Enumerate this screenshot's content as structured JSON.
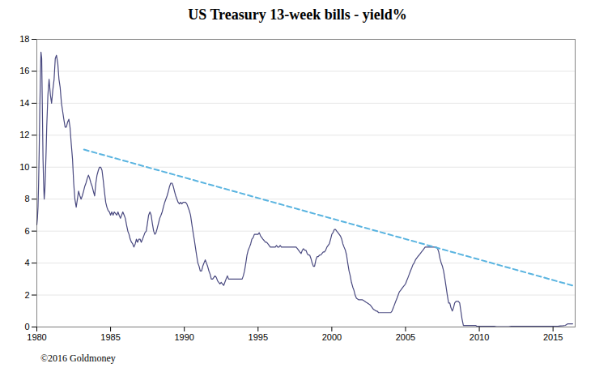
{
  "chart_data": {
    "type": "line",
    "title": "US Treasury 13-week bills - yield%",
    "annotations": [
      "©2016 Goldmoney"
    ],
    "xlim": [
      1980,
      2016.5
    ],
    "ylim": [
      0,
      18
    ],
    "xticks": [
      1980,
      1985,
      1990,
      1995,
      2000,
      2005,
      2010,
      2015
    ],
    "yticks": [
      0,
      2,
      4,
      6,
      8,
      10,
      12,
      14,
      16,
      18
    ],
    "grid": "y",
    "series": [
      {
        "color": "#4a4a80",
        "line_style": "solid",
        "x": [
          1980.0,
          1980.04,
          1980.08,
          1980.12,
          1980.16,
          1980.2,
          1980.24,
          1980.28,
          1980.33,
          1980.37,
          1980.42,
          1980.46,
          1980.5,
          1980.54,
          1980.58,
          1980.63,
          1980.67,
          1980.75,
          1980.83,
          1980.92,
          1981.0,
          1981.08,
          1981.17,
          1981.25,
          1981.33,
          1981.42,
          1981.5,
          1981.58,
          1981.67,
          1981.75,
          1981.83,
          1981.92,
          1982.0,
          1982.08,
          1982.17,
          1982.25,
          1982.33,
          1982.42,
          1982.5,
          1982.58,
          1982.67,
          1982.75,
          1982.83,
          1982.92,
          1983.0,
          1983.08,
          1983.17,
          1983.25,
          1983.33,
          1983.42,
          1983.5,
          1983.58,
          1983.67,
          1983.75,
          1983.83,
          1983.92,
          1984.0,
          1984.08,
          1984.17,
          1984.25,
          1984.33,
          1984.42,
          1984.5,
          1984.58,
          1984.67,
          1984.75,
          1984.83,
          1984.92,
          1985.0,
          1985.08,
          1985.17,
          1985.25,
          1985.33,
          1985.42,
          1985.5,
          1985.58,
          1985.67,
          1985.75,
          1985.83,
          1985.92,
          1986.0,
          1986.08,
          1986.17,
          1986.25,
          1986.33,
          1986.42,
          1986.5,
          1986.58,
          1986.67,
          1986.75,
          1986.83,
          1986.92,
          1987.0,
          1987.08,
          1987.17,
          1987.25,
          1987.33,
          1987.42,
          1987.5,
          1987.58,
          1987.67,
          1987.75,
          1987.83,
          1987.92,
          1988.0,
          1988.08,
          1988.17,
          1988.25,
          1988.33,
          1988.42,
          1988.5,
          1988.58,
          1988.67,
          1988.75,
          1988.83,
          1988.92,
          1989.0,
          1989.08,
          1989.17,
          1989.25,
          1989.33,
          1989.42,
          1989.5,
          1989.58,
          1989.67,
          1989.75,
          1989.83,
          1989.92,
          1990.0,
          1990.08,
          1990.17,
          1990.25,
          1990.33,
          1990.42,
          1990.5,
          1990.58,
          1990.67,
          1990.75,
          1990.83,
          1990.92,
          1991.0,
          1991.08,
          1991.17,
          1991.25,
          1991.33,
          1991.42,
          1991.5,
          1991.58,
          1991.67,
          1991.75,
          1991.83,
          1991.92,
          1992.0,
          1992.08,
          1992.17,
          1992.25,
          1992.33,
          1992.42,
          1992.5,
          1992.58,
          1992.67,
          1992.75,
          1992.83,
          1992.92,
          1993.0,
          1993.08,
          1993.17,
          1993.25,
          1993.33,
          1993.42,
          1993.5,
          1993.58,
          1993.67,
          1993.75,
          1993.83,
          1993.92,
          1994.0,
          1994.08,
          1994.17,
          1994.25,
          1994.33,
          1994.42,
          1994.5,
          1994.58,
          1994.67,
          1994.75,
          1994.83,
          1994.92,
          1995.0,
          1995.08,
          1995.17,
          1995.25,
          1995.33,
          1995.42,
          1995.5,
          1995.58,
          1995.67,
          1995.75,
          1995.83,
          1995.92,
          1996.0,
          1996.08,
          1996.17,
          1996.25,
          1996.33,
          1996.42,
          1996.5,
          1996.58,
          1996.67,
          1996.75,
          1996.83,
          1996.92,
          1997.0,
          1997.08,
          1997.17,
          1997.25,
          1997.33,
          1997.42,
          1997.5,
          1997.58,
          1997.67,
          1997.75,
          1997.83,
          1997.92,
          1998.0,
          1998.08,
          1998.17,
          1998.25,
          1998.33,
          1998.42,
          1998.5,
          1998.58,
          1998.67,
          1998.75,
          1998.83,
          1998.92,
          1999.0,
          1999.08,
          1999.17,
          1999.25,
          1999.33,
          1999.42,
          1999.5,
          1999.58,
          1999.67,
          1999.75,
          1999.83,
          1999.92,
          2000.0,
          2000.08,
          2000.17,
          2000.25,
          2000.33,
          2000.42,
          2000.5,
          2000.58,
          2000.67,
          2000.75,
          2000.83,
          2000.92,
          2001.0,
          2001.08,
          2001.17,
          2001.25,
          2001.33,
          2001.42,
          2001.5,
          2001.58,
          2001.67,
          2001.75,
          2001.83,
          2001.92,
          2002.0,
          2002.08,
          2002.17,
          2002.25,
          2002.33,
          2002.42,
          2002.5,
          2002.58,
          2002.67,
          2002.75,
          2002.83,
          2002.92,
          2003.0,
          2003.08,
          2003.17,
          2003.25,
          2003.33,
          2003.42,
          2003.5,
          2003.58,
          2003.67,
          2003.75,
          2003.83,
          2003.92,
          2004.0,
          2004.08,
          2004.17,
          2004.25,
          2004.33,
          2004.42,
          2004.5,
          2004.58,
          2004.67,
          2004.75,
          2004.83,
          2004.92,
          2005.0,
          2005.08,
          2005.17,
          2005.25,
          2005.33,
          2005.42,
          2005.5,
          2005.58,
          2005.67,
          2005.75,
          2005.83,
          2005.92,
          2006.0,
          2006.08,
          2006.17,
          2006.25,
          2006.33,
          2006.42,
          2006.5,
          2006.58,
          2006.67,
          2006.75,
          2006.83,
          2006.92,
          2007.0,
          2007.08,
          2007.17,
          2007.25,
          2007.33,
          2007.42,
          2007.5,
          2007.58,
          2007.67,
          2007.75,
          2007.83,
          2007.92,
          2008.0,
          2008.08,
          2008.17,
          2008.25,
          2008.33,
          2008.42,
          2008.5,
          2008.58,
          2008.67,
          2008.75,
          2008.83,
          2008.92,
          2009.0,
          2009.08,
          2009.17,
          2009.25,
          2009.33,
          2009.42,
          2009.5,
          2009.58,
          2009.67,
          2009.75,
          2009.83,
          2009.92,
          2010.0,
          2010.17,
          2010.33,
          2010.5,
          2010.67,
          2010.83,
          2011.0,
          2011.17,
          2011.33,
          2011.5,
          2011.67,
          2011.83,
          2012.0,
          2012.17,
          2012.33,
          2012.5,
          2012.67,
          2012.83,
          2013.0,
          2013.17,
          2013.33,
          2013.5,
          2013.67,
          2013.83,
          2014.0,
          2014.17,
          2014.33,
          2014.5,
          2014.67,
          2014.83,
          2015.0,
          2015.17,
          2015.33,
          2015.5,
          2015.67,
          2015.83,
          2016.0,
          2016.17,
          2016.33
        ],
        "values": [
          6.4,
          6.8,
          7.5,
          9.0,
          11.0,
          13.5,
          15.5,
          17.2,
          16.8,
          14.0,
          10.5,
          9.0,
          8.0,
          8.5,
          9.5,
          11.0,
          12.5,
          14.5,
          15.5,
          14.5,
          14.0,
          14.8,
          15.5,
          16.8,
          17.0,
          16.5,
          15.5,
          15.0,
          14.0,
          13.5,
          13.0,
          12.5,
          12.5,
          12.8,
          13.0,
          12.5,
          11.5,
          10.5,
          9.0,
          8.0,
          7.5,
          8.0,
          8.5,
          8.2,
          8.0,
          8.2,
          8.5,
          8.8,
          9.0,
          9.3,
          9.5,
          9.3,
          9.0,
          8.8,
          8.5,
          8.2,
          9.0,
          9.5,
          9.8,
          10.0,
          10.0,
          9.8,
          9.2,
          8.5,
          7.8,
          7.5,
          7.3,
          7.2,
          7.0,
          7.2,
          7.0,
          7.2,
          7.1,
          7.0,
          7.2,
          7.0,
          6.8,
          7.0,
          7.2,
          7.0,
          6.8,
          6.4,
          6.0,
          5.8,
          5.5,
          5.3,
          5.2,
          5.0,
          5.2,
          5.5,
          5.3,
          5.5,
          5.5,
          5.3,
          5.5,
          5.7,
          5.9,
          6.0,
          6.5,
          7.0,
          7.2,
          7.0,
          6.5,
          6.0,
          5.8,
          5.9,
          6.2,
          6.5,
          6.8,
          7.0,
          7.2,
          7.5,
          7.8,
          8.0,
          8.2,
          8.5,
          8.8,
          9.0,
          9.0,
          8.8,
          8.5,
          8.2,
          8.0,
          7.8,
          7.7,
          7.8,
          7.7,
          7.8,
          7.8,
          7.8,
          7.7,
          7.5,
          7.3,
          7.0,
          6.5,
          6.0,
          5.5,
          5.0,
          4.5,
          4.0,
          3.8,
          3.5,
          3.5,
          3.8,
          4.0,
          4.2,
          4.0,
          3.8,
          3.5,
          3.3,
          3.0,
          3.0,
          3.1,
          3.2,
          3.1,
          2.9,
          2.8,
          2.7,
          2.8,
          2.7,
          2.6,
          2.8,
          3.0,
          3.2,
          3.0,
          3.0,
          3.0,
          3.0,
          3.0,
          3.0,
          3.0,
          3.0,
          3.0,
          3.0,
          3.0,
          3.0,
          3.2,
          3.5,
          4.0,
          4.5,
          4.8,
          5.0,
          5.2,
          5.5,
          5.6,
          5.8,
          5.8,
          5.8,
          5.8,
          5.9,
          5.7,
          5.6,
          5.5,
          5.4,
          5.3,
          5.3,
          5.2,
          5.1,
          5.0,
          5.0,
          5.0,
          5.0,
          5.0,
          5.1,
          5.0,
          5.0,
          5.1,
          5.0,
          5.0,
          5.0,
          5.0,
          5.0,
          5.0,
          5.0,
          5.0,
          5.0,
          5.0,
          5.0,
          5.0,
          5.0,
          4.9,
          4.8,
          4.7,
          4.6,
          4.8,
          4.9,
          4.8,
          4.8,
          4.6,
          4.5,
          4.5,
          4.3,
          4.0,
          3.8,
          3.8,
          4.2,
          4.4,
          4.4,
          4.5,
          4.5,
          4.6,
          4.7,
          4.7,
          4.8,
          5.0,
          5.1,
          5.2,
          5.5,
          5.8,
          5.9,
          6.1,
          6.1,
          6.0,
          5.9,
          5.8,
          5.7,
          5.5,
          5.2,
          5.0,
          4.8,
          4.5,
          4.0,
          3.5,
          3.2,
          2.8,
          2.5,
          2.3,
          2.0,
          1.8,
          1.75,
          1.7,
          1.7,
          1.7,
          1.7,
          1.65,
          1.6,
          1.55,
          1.5,
          1.45,
          1.4,
          1.3,
          1.2,
          1.1,
          1.05,
          1.0,
          1.0,
          0.9,
          0.9,
          0.9,
          0.9,
          0.9,
          0.9,
          0.9,
          0.9,
          0.9,
          0.9,
          0.9,
          1.0,
          1.2,
          1.4,
          1.6,
          1.8,
          2.0,
          2.2,
          2.3,
          2.4,
          2.5,
          2.6,
          2.7,
          2.9,
          3.1,
          3.3,
          3.5,
          3.7,
          3.9,
          4.0,
          4.2,
          4.3,
          4.4,
          4.5,
          4.6,
          4.7,
          4.8,
          4.9,
          5.0,
          5.0,
          5.0,
          5.0,
          5.0,
          5.0,
          5.0,
          5.0,
          5.0,
          5.0,
          4.9,
          4.7,
          4.3,
          4.0,
          3.8,
          3.5,
          3.0,
          2.5,
          2.0,
          1.5,
          1.5,
          1.2,
          1.0,
          1.2,
          1.5,
          1.6,
          1.6,
          1.6,
          1.5,
          1.0,
          0.5,
          0.1,
          0.1,
          0.1,
          0.1,
          0.1,
          0.1,
          0.1,
          0.1,
          0.1,
          0.1,
          0.1,
          0.05,
          0.05,
          0.05,
          0.05,
          0.05,
          0.05,
          0.05,
          0.05,
          0.05,
          0.02,
          0.02,
          0.02,
          0.02,
          0.02,
          0.02,
          0.05,
          0.05,
          0.05,
          0.05,
          0.05,
          0.05,
          0.05,
          0.05,
          0.05,
          0.05,
          0.05,
          0.05,
          0.05,
          0.05,
          0.05,
          0.05,
          0.05,
          0.05,
          0.05,
          0.05,
          0.07,
          0.08,
          0.1,
          0.2,
          0.2,
          0.2
        ]
      },
      {
        "color": "#5ab4e0",
        "line_style": "dashed",
        "x": [
          1983.2,
          2016.5
        ],
        "values": [
          11.1,
          2.55
        ]
      }
    ]
  }
}
